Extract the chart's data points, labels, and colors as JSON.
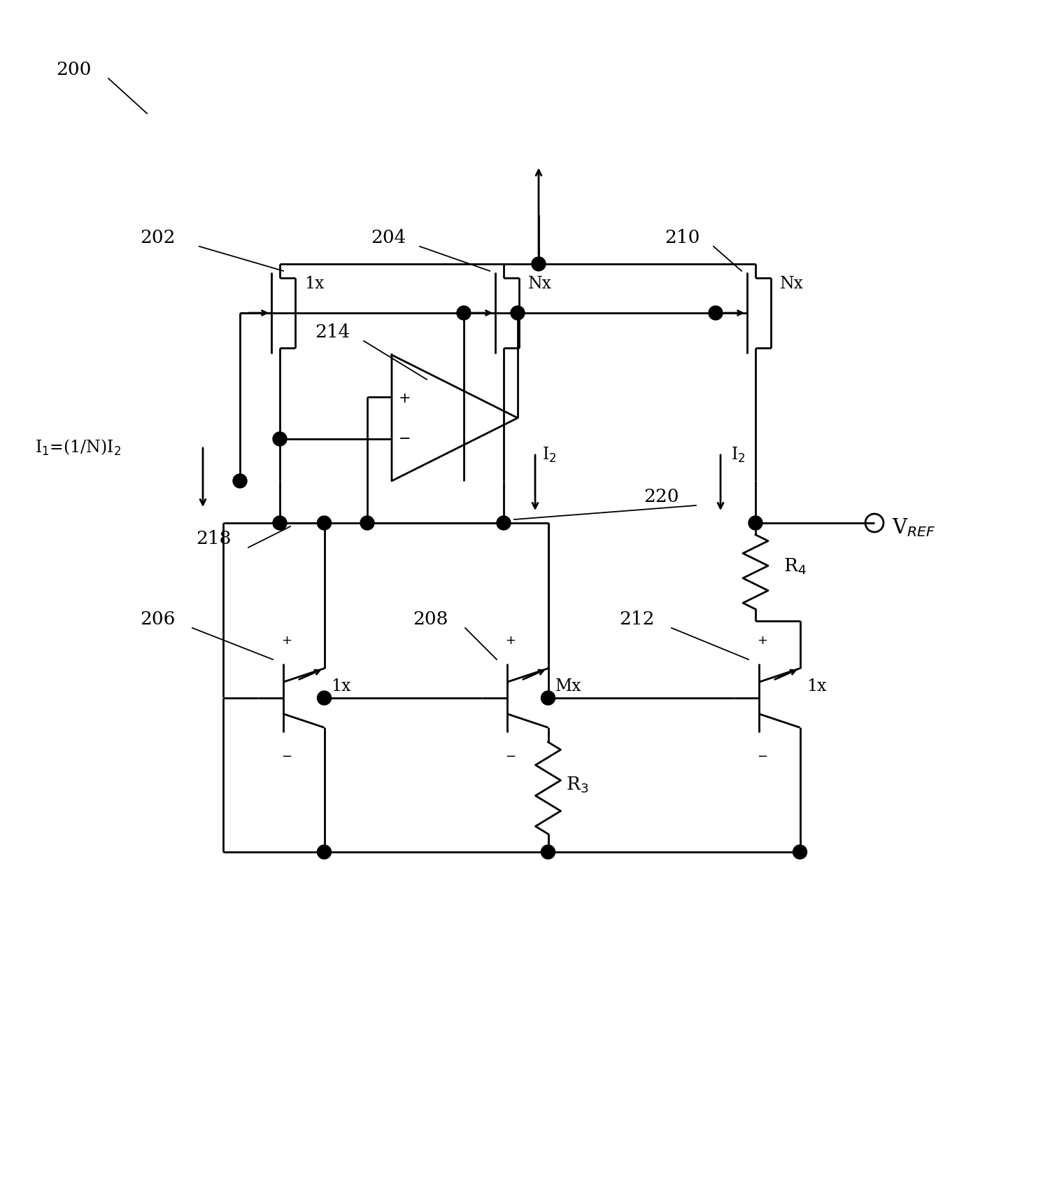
{
  "fig_width": 15.21,
  "fig_height": 16.97,
  "bg_color": "#ffffff",
  "line_color": "#000000",
  "line_width": 2.0,
  "label_200": "200",
  "label_202": "202",
  "label_204": "204",
  "label_206": "206",
  "label_208": "208",
  "label_210": "210",
  "label_212": "212",
  "label_214": "214",
  "label_218": "218",
  "label_220": "220",
  "label_R3": "R$_3$",
  "label_R4": "R$_4$",
  "label_1x_a": "1x",
  "label_Nx_b": "Nx",
  "label_Nx_c": "Nx",
  "label_Mx": "Mx",
  "label_1x_d": "1x",
  "label_I1": "I$_1$=(1/N)I$_2$",
  "label_I2_mid": "I$_2$",
  "label_I2_right": "I$_2$",
  "label_VREF": "V$_{REF}$",
  "font_size_labels": 17,
  "font_size_numbers": 19
}
